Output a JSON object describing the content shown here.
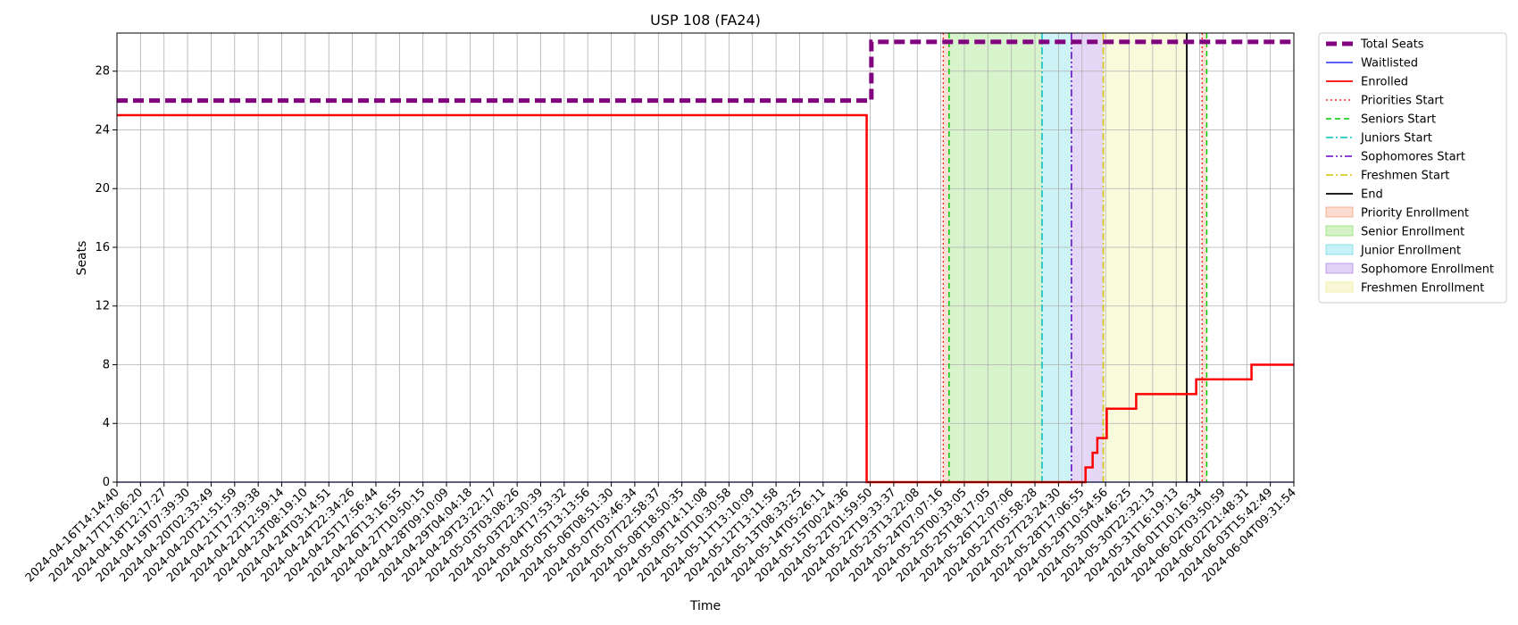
{
  "chart_data": {
    "type": "line",
    "title": "USP 108 (FA24)",
    "xlabel": "Time",
    "ylabel": "Seats",
    "xlim": [
      "2024-04-16T14:14:40",
      "2024-06-04T09:31:54"
    ],
    "ylim": [
      0,
      30.6
    ],
    "yticks": [
      0,
      4,
      8,
      12,
      16,
      20,
      24,
      28
    ],
    "grid": true,
    "legend_position": "outside-top-right",
    "x_tick_labels": [
      "2024-04-16T14:14:40",
      "2024-04-17T17:06:20",
      "2024-04-18T12:17:27",
      "2024-04-19T07:39:30",
      "2024-04-20T02:33:49",
      "2024-04-20T21:51:59",
      "2024-04-21T17:39:38",
      "2024-04-22T12:59:14",
      "2024-04-23T08:19:10",
      "2024-04-24T03:14:51",
      "2024-04-24T22:34:26",
      "2024-04-25T17:56:44",
      "2024-04-26T13:16:55",
      "2024-04-27T10:50:15",
      "2024-04-28T09:10:09",
      "2024-04-29T04:04:18",
      "2024-04-29T23:22:17",
      "2024-05-03T03:08:26",
      "2024-05-03T22:30:39",
      "2024-05-04T17:53:32",
      "2024-05-05T13:13:56",
      "2024-05-06T08:51:30",
      "2024-05-07T03:46:34",
      "2024-05-07T22:58:37",
      "2024-05-08T18:50:35",
      "2024-05-09T14:11:08",
      "2024-05-10T10:30:58",
      "2024-05-11T13:10:09",
      "2024-05-12T13:11:58",
      "2024-05-13T08:33:25",
      "2024-05-14T05:26:11",
      "2024-05-15T00:24:36",
      "2024-05-22T01:59:50",
      "2024-05-22T19:33:37",
      "2024-05-23T13:22:08",
      "2024-05-24T07:07:16",
      "2024-05-25T00:33:05",
      "2024-05-25T18:17:05",
      "2024-05-26T12:07:06",
      "2024-05-27T05:58:28",
      "2024-05-27T23:24:30",
      "2024-05-28T17:06:55",
      "2024-05-29T10:54:56",
      "2024-05-30T04:46:25",
      "2024-05-30T22:32:13",
      "2024-05-31T16:19:13",
      "2024-06-01T10:16:34",
      "2024-06-02T03:50:59",
      "2024-06-02T21:48:31",
      "2024-06-03T15:42:49",
      "2024-06-04T09:31:54"
    ],
    "series": [
      {
        "name": "Total Seats",
        "color": "#800080",
        "style": "dashed-thick",
        "step": true,
        "x": [
          0,
          31.85,
          32.05,
          50
        ],
        "values": [
          26,
          26,
          30,
          30
        ]
      },
      {
        "name": "Waitlisted",
        "color": "#0000ff",
        "style": "solid-thin",
        "step": true,
        "x": [
          0,
          50
        ],
        "values": [
          0,
          0
        ]
      },
      {
        "name": "Enrolled",
        "color": "#ff0000",
        "style": "solid-thick",
        "step": true,
        "x": [
          0,
          31.85,
          40.9,
          41.15,
          41.45,
          41.65,
          41.85,
          42.05,
          43.3,
          45.85,
          48.2,
          50
        ],
        "values": [
          25,
          0,
          0,
          1,
          2,
          3,
          3,
          5,
          6,
          7,
          8,
          8
        ]
      }
    ],
    "vertical_lines": [
      {
        "name": "Priorities Start",
        "color": "#ff0000",
        "style": "dotted",
        "x": 35.1
      },
      {
        "name": "Priorities Start",
        "color": "#ff0000",
        "style": "dotted",
        "x": 46.1
      },
      {
        "name": "Seniors Start",
        "color": "#00cc00",
        "style": "dashed",
        "x": 35.35
      },
      {
        "name": "Seniors Start",
        "color": "#00cc00",
        "style": "dashed",
        "x": 46.3
      },
      {
        "name": "Juniors Start",
        "color": "#00bfbf",
        "style": "dashdot",
        "x": 39.3
      },
      {
        "name": "Sophomores Start",
        "color": "#6600cc",
        "style": "dashdotdot",
        "x": 40.55
      },
      {
        "name": "Freshmen Start",
        "color": "#d4c400",
        "style": "dashdot",
        "x": 41.9
      },
      {
        "name": "End",
        "color": "#000000",
        "style": "solid",
        "x": 45.45
      }
    ],
    "bands": [
      {
        "name": "Priority Enrollment",
        "color": "#f4a582",
        "x0": 35.1,
        "x1": 35.35
      },
      {
        "name": "Priority Enrollment",
        "color": "#f4a582",
        "x0": 46.1,
        "x1": 46.3
      },
      {
        "name": "Senior Enrollment",
        "color": "#90e070",
        "x0": 35.35,
        "x1": 39.3
      },
      {
        "name": "Junior Enrollment",
        "color": "#70dde8",
        "x0": 39.3,
        "x1": 40.55
      },
      {
        "name": "Sophomore Enrollment",
        "color": "#b48ee8",
        "x0": 40.55,
        "x1": 41.9
      },
      {
        "name": "Freshmen Enrollment",
        "color": "#eeee9a",
        "x0": 41.9,
        "x1": 45.45
      }
    ],
    "legend": [
      {
        "label": "Total Seats",
        "kind": "line",
        "color": "#800080",
        "style": "dashed-thick"
      },
      {
        "label": "Waitlisted",
        "kind": "line",
        "color": "#0000ff",
        "style": "solid-thin"
      },
      {
        "label": "Enrolled",
        "kind": "line",
        "color": "#ff0000",
        "style": "solid"
      },
      {
        "label": "Priorities Start",
        "kind": "line",
        "color": "#ff0000",
        "style": "dotted"
      },
      {
        "label": "Seniors Start",
        "kind": "line",
        "color": "#00cc00",
        "style": "dashed"
      },
      {
        "label": "Juniors Start",
        "kind": "line",
        "color": "#00bfbf",
        "style": "dashdot"
      },
      {
        "label": "Sophomores Start",
        "kind": "line",
        "color": "#6600cc",
        "style": "dashdotdot"
      },
      {
        "label": "Freshmen Start",
        "kind": "line",
        "color": "#d4c400",
        "style": "dashdot"
      },
      {
        "label": "End",
        "kind": "line",
        "color": "#000000",
        "style": "solid"
      },
      {
        "label": "Priority Enrollment",
        "kind": "patch",
        "color": "#f4a582"
      },
      {
        "label": "Senior Enrollment",
        "kind": "patch",
        "color": "#90e070"
      },
      {
        "label": "Junior Enrollment",
        "kind": "patch",
        "color": "#70dde8"
      },
      {
        "label": "Sophomore Enrollment",
        "kind": "patch",
        "color": "#b48ee8"
      },
      {
        "label": "Freshmen Enrollment",
        "kind": "patch",
        "color": "#eeee9a"
      }
    ]
  }
}
